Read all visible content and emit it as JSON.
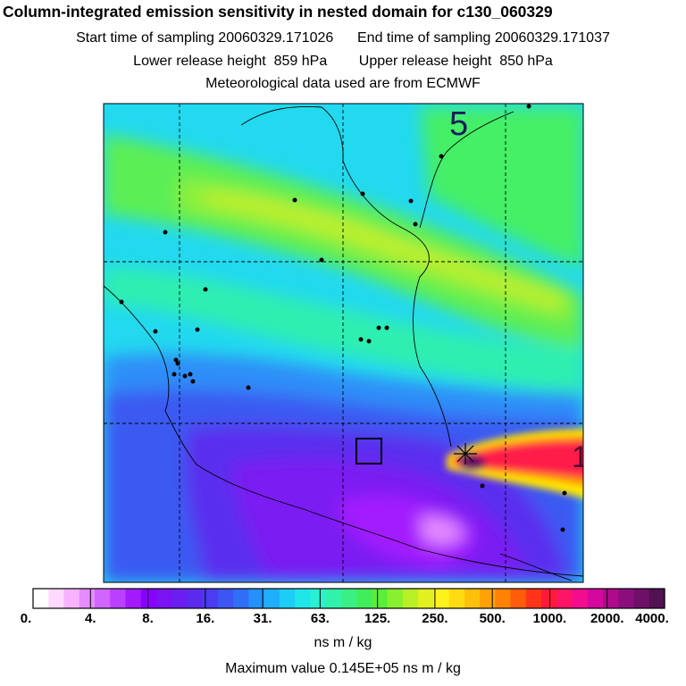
{
  "header": {
    "title": "Column-integrated emission sensitivity in nested domain for c130_060329",
    "line2": "Start time of sampling 20060329.171026      End time of sampling 20060329.171037",
    "line3": "Lower release height  859 hPa        Upper release height  850 hPa",
    "line4": "Meteorological data used are from ECMWF"
  },
  "map": {
    "annotations": [
      "5",
      "1"
    ],
    "colors": {
      "low": "#7a2cf0",
      "mid": "#1fd8ef",
      "high": "#ffe600",
      "peak": "#ff1a7a"
    }
  },
  "chart_data": {
    "type": "heatmap",
    "title": "Column-integrated emission sensitivity in nested domain for c130_060329",
    "colorbar": {
      "ticks": [
        "0.",
        "4.",
        "8.",
        "16.",
        "31.",
        "63.",
        "125.",
        "250.",
        "500.",
        "1000.",
        "2000.",
        "4000."
      ],
      "colors": [
        "#ffffff",
        "#ffd9ff",
        "#f7b3ff",
        "#e68cff",
        "#d066ff",
        "#bb3fff",
        "#a31aff",
        "#8800ff",
        "#7a12f2",
        "#6a1ff0",
        "#5a2aee",
        "#4a3cf0",
        "#3d55f2",
        "#2f6ef6",
        "#2590fb",
        "#1eaefc",
        "#1ccdf8",
        "#20e6ea",
        "#28f0d0",
        "#30f2aa",
        "#3af085",
        "#40ee5c",
        "#58ee3a",
        "#88f02e",
        "#b8f025",
        "#e2f01d",
        "#fff21a",
        "#ffdc12",
        "#ffc00c",
        "#ffa208",
        "#ff8205",
        "#ff5c0c",
        "#ff3418",
        "#ff1a3c",
        "#ff1466",
        "#f20c8e",
        "#d4089c",
        "#b00a8c",
        "#8c0e7c",
        "#6e1068",
        "#501250"
      ],
      "unit": "ns m / kg"
    },
    "max_value": "Maximum value  0.145E+05 ns m / kg"
  }
}
